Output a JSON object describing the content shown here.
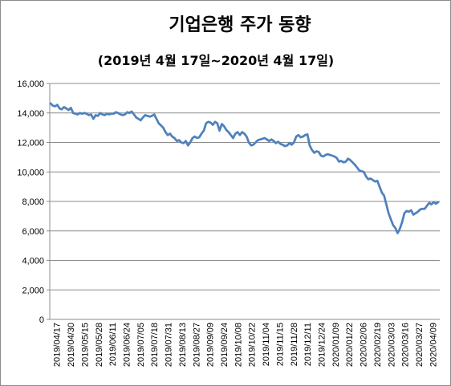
{
  "chart_data": {
    "type": "line",
    "title": "기업은행 주가 동향",
    "subtitle": "(2019년 4월 17일~2020년 4월 17일)",
    "xlabel": "",
    "ylabel": "",
    "ylim": [
      0,
      16000
    ],
    "y_ticks": [
      "0",
      "2,000",
      "4,000",
      "6,000",
      "8,000",
      "10,000",
      "12,000",
      "14,000",
      "16,000"
    ],
    "x_tick_labels": [
      "2019/04/17",
      "2019/04/30",
      "2019/05/15",
      "2019/05/28",
      "2019/06/11",
      "2019/06/24",
      "2019/07/05",
      "2019/07/18",
      "2019/07/31",
      "2019/08/13",
      "2019/08/27",
      "2019/09/09",
      "2019/09/24",
      "2019/10/08",
      "2019/10/22",
      "2019/11/04",
      "2019/11/15",
      "2019/11/28",
      "2019/12/11",
      "2019/12/24",
      "2020/01/09",
      "2020/01/22",
      "2020/02/06",
      "2020/02/19",
      "2020/03/03",
      "2020/03/16",
      "2020/03/27",
      "2020/04/09"
    ],
    "grid": "horizontal",
    "legend": "none",
    "series": [
      {
        "color": "#4f81bd",
        "values": [
          14650,
          14500,
          14450,
          14550,
          14300,
          14250,
          14400,
          14300,
          14200,
          14350,
          14000,
          13950,
          13900,
          14000,
          13950,
          14000,
          13950,
          13850,
          13900,
          13600,
          13850,
          13800,
          14000,
          13900,
          13850,
          13950,
          13900,
          13950,
          13950,
          14050,
          14000,
          13900,
          13850,
          13900,
          14050,
          14000,
          14100,
          13900,
          13700,
          13600,
          13500,
          13700,
          13850,
          13800,
          13750,
          13800,
          13900,
          13600,
          13300,
          13150,
          13000,
          12700,
          12500,
          12600,
          12400,
          12300,
          12100,
          12150,
          12000,
          11950,
          12100,
          11800,
          12000,
          12300,
          12400,
          12300,
          12350,
          12600,
          12800,
          13300,
          13400,
          13350,
          13200,
          13400,
          13300,
          12800,
          13250,
          13100,
          12850,
          12700,
          12500,
          12300,
          12600,
          12700,
          12500,
          12700,
          12600,
          12400,
          12000,
          11800,
          11850,
          12000,
          12150,
          12200,
          12250,
          12300,
          12200,
          12100,
          12200,
          12100,
          11950,
          12050,
          11900,
          11850,
          11750,
          11800,
          11950,
          11850,
          12000,
          12400,
          12500,
          12350,
          12400,
          12500,
          12550,
          11800,
          11500,
          11300,
          11400,
          11350,
          11100,
          11050,
          11150,
          11200,
          11150,
          11100,
          11050,
          10950,
          10700,
          10750,
          10650,
          10700,
          10900,
          10800,
          10650,
          10500,
          10300,
          10100,
          10050,
          10000,
          9700,
          9500,
          9550,
          9450,
          9350,
          9400,
          9000,
          8600,
          8400,
          7800,
          7200,
          6800,
          6400,
          6200,
          5850,
          6150,
          6600,
          7200,
          7350,
          7300,
          7400,
          7100,
          7200,
          7300,
          7450,
          7500,
          7500,
          7700,
          7900,
          7800,
          7950,
          7850,
          7950
        ]
      }
    ]
  }
}
